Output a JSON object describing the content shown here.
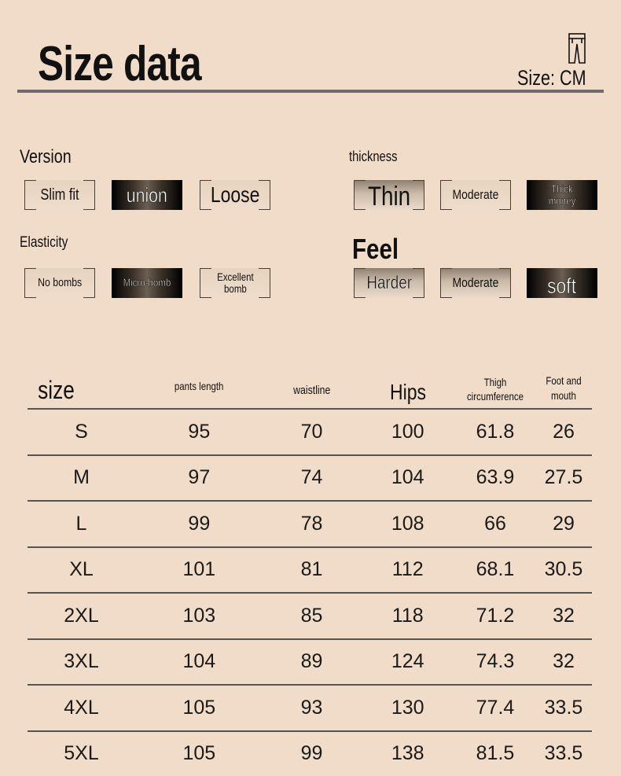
{
  "header": {
    "title": "Size data",
    "unit": "Size: CM",
    "icon": "pants-icon"
  },
  "attributes": {
    "version": {
      "label": "Version",
      "options": [
        "Slim fit",
        "union",
        "Loose"
      ],
      "selected": "union"
    },
    "thickness": {
      "label": "thickness",
      "options": [
        "Thin",
        "Moderate",
        "Thick money"
      ],
      "selected": "Thick money"
    },
    "elasticity": {
      "label": "Elasticity",
      "options": [
        "No bombs",
        "Micro-bomb",
        "Excellent bomb"
      ],
      "selected": "Micro-bomb"
    },
    "feel": {
      "label": "Feel",
      "options": [
        "Harder",
        "Moderate",
        "soft"
      ],
      "selected": "soft"
    }
  },
  "table": {
    "headers": [
      "size",
      "pants length",
      "waistline",
      "Hips",
      "Thigh circumference",
      "Foot and mouth"
    ],
    "rows": [
      [
        "S",
        "95",
        "70",
        "100",
        "61.8",
        "26"
      ],
      [
        "M",
        "97",
        "74",
        "104",
        "63.9",
        "27.5"
      ],
      [
        "L",
        "99",
        "78",
        "108",
        "66",
        "29"
      ],
      [
        "XL",
        "101",
        "81",
        "112",
        "68.1",
        "30.5"
      ],
      [
        "2XL",
        "103",
        "85",
        "118",
        "71.2",
        "32"
      ],
      [
        "3XL",
        "104",
        "89",
        "124",
        "74.3",
        "32"
      ],
      [
        "4XL",
        "105",
        "93",
        "130",
        "77.4",
        "33.5"
      ],
      [
        "5XL",
        "105",
        "99",
        "138",
        "81.5",
        "33.5"
      ]
    ]
  }
}
